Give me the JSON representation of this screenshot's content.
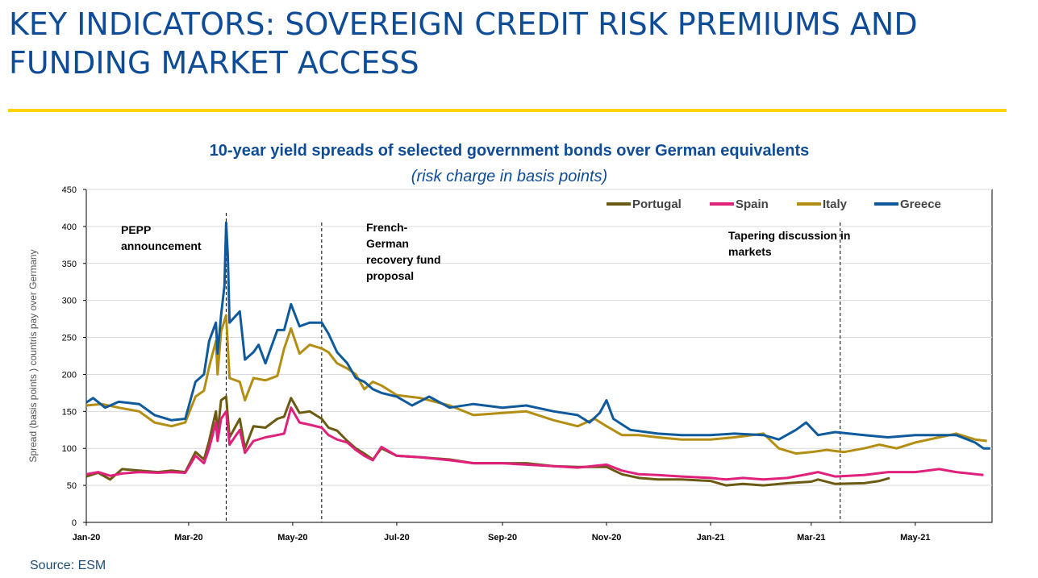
{
  "slide": {
    "title_line1": "KEY INDICATORS: SOVEREIGN CREDIT RISK PREMIUMS AND",
    "title_line2": "FUNDING MARKET ACCESS",
    "accent_color": "#FFD200",
    "title_color": "#0F4C97",
    "source": "Source: ESM"
  },
  "chart_data": {
    "type": "line",
    "title": "10-year yield spreads of selected government bonds over German equivalents",
    "subtitle": "(risk charge in basis points)",
    "ylabel": "Spread (basis points ) countris pay over Germany",
    "xlabel": "",
    "ylim": [
      0,
      450
    ],
    "y_ticks": [
      "0",
      "50",
      "100",
      "150",
      "200",
      "250",
      "300",
      "350",
      "400",
      "450"
    ],
    "x_ticks": [
      {
        "label": "Jan-20",
        "date": "2020-01-01"
      },
      {
        "label": "Mar-20",
        "date": "2020-03-01"
      },
      {
        "label": "May-20",
        "date": "2020-05-01"
      },
      {
        "label": "Jul-20",
        "date": "2020-07-01"
      },
      {
        "label": "Sep-20",
        "date": "2020-09-01"
      },
      {
        "label": "Nov-20",
        "date": "2020-11-01"
      },
      {
        "label": "Jan-21",
        "date": "2021-01-01"
      },
      {
        "label": "Mar-21",
        "date": "2021-03-01"
      },
      {
        "label": "May-21",
        "date": "2021-05-01"
      }
    ],
    "x_range": [
      "2020-01-01",
      "2021-06-15"
    ],
    "grid": true,
    "legend_position": "top-right",
    "series": [
      {
        "name": "Portugal",
        "color": "#6B5A12",
        "points": [
          [
            "2020-01-01",
            62
          ],
          [
            "2020-01-08",
            67
          ],
          [
            "2020-01-15",
            58
          ],
          [
            "2020-01-22",
            72
          ],
          [
            "2020-02-01",
            70
          ],
          [
            "2020-02-12",
            68
          ],
          [
            "2020-02-20",
            70
          ],
          [
            "2020-02-28",
            68
          ],
          [
            "2020-03-05",
            95
          ],
          [
            "2020-03-10",
            85
          ],
          [
            "2020-03-13",
            110
          ],
          [
            "2020-03-17",
            150
          ],
          [
            "2020-03-18",
            120
          ],
          [
            "2020-03-20",
            165
          ],
          [
            "2020-03-23",
            170
          ],
          [
            "2020-03-25",
            115
          ],
          [
            "2020-03-31",
            140
          ],
          [
            "2020-04-03",
            100
          ],
          [
            "2020-04-08",
            130
          ],
          [
            "2020-04-15",
            128
          ],
          [
            "2020-04-22",
            140
          ],
          [
            "2020-04-26",
            143
          ],
          [
            "2020-04-30",
            168
          ],
          [
            "2020-05-05",
            148
          ],
          [
            "2020-05-11",
            150
          ],
          [
            "2020-05-18",
            140
          ],
          [
            "2020-05-22",
            128
          ],
          [
            "2020-05-27",
            124
          ],
          [
            "2020-06-02",
            110
          ],
          [
            "2020-06-07",
            100
          ],
          [
            "2020-06-12",
            93
          ],
          [
            "2020-06-17",
            85
          ],
          [
            "2020-06-22",
            100
          ],
          [
            "2020-07-01",
            90
          ],
          [
            "2020-07-15",
            88
          ],
          [
            "2020-08-01",
            85
          ],
          [
            "2020-08-15",
            80
          ],
          [
            "2020-09-01",
            80
          ],
          [
            "2020-09-15",
            80
          ],
          [
            "2020-10-01",
            76
          ],
          [
            "2020-10-15",
            75
          ],
          [
            "2020-11-01",
            75
          ],
          [
            "2020-11-10",
            65
          ],
          [
            "2020-11-20",
            60
          ],
          [
            "2020-12-01",
            58
          ],
          [
            "2020-12-15",
            58
          ],
          [
            "2021-01-01",
            56
          ],
          [
            "2021-01-10",
            50
          ],
          [
            "2021-01-20",
            52
          ],
          [
            "2021-02-01",
            50
          ],
          [
            "2021-02-15",
            53
          ],
          [
            "2021-03-01",
            55
          ],
          [
            "2021-03-05",
            58
          ],
          [
            "2021-03-15",
            52
          ],
          [
            "2021-04-01",
            53
          ],
          [
            "2021-04-10",
            56
          ],
          [
            "2021-04-16",
            60
          ]
        ]
      },
      {
        "name": "Spain",
        "color": "#E0217C",
        "points": [
          [
            "2020-01-01",
            65
          ],
          [
            "2020-01-08",
            68
          ],
          [
            "2020-01-15",
            63
          ],
          [
            "2020-01-22",
            66
          ],
          [
            "2020-02-01",
            68
          ],
          [
            "2020-02-12",
            67
          ],
          [
            "2020-02-20",
            68
          ],
          [
            "2020-02-28",
            67
          ],
          [
            "2020-03-05",
            90
          ],
          [
            "2020-03-10",
            80
          ],
          [
            "2020-03-13",
            100
          ],
          [
            "2020-03-17",
            135
          ],
          [
            "2020-03-18",
            110
          ],
          [
            "2020-03-20",
            140
          ],
          [
            "2020-03-23",
            150
          ],
          [
            "2020-03-25",
            105
          ],
          [
            "2020-03-31",
            125
          ],
          [
            "2020-04-03",
            94
          ],
          [
            "2020-04-08",
            110
          ],
          [
            "2020-04-15",
            115
          ],
          [
            "2020-04-22",
            118
          ],
          [
            "2020-04-26",
            120
          ],
          [
            "2020-04-30",
            155
          ],
          [
            "2020-05-05",
            135
          ],
          [
            "2020-05-11",
            132
          ],
          [
            "2020-05-18",
            128
          ],
          [
            "2020-05-22",
            118
          ],
          [
            "2020-05-27",
            112
          ],
          [
            "2020-06-02",
            108
          ],
          [
            "2020-06-07",
            98
          ],
          [
            "2020-06-12",
            90
          ],
          [
            "2020-06-17",
            84
          ],
          [
            "2020-06-22",
            102
          ],
          [
            "2020-07-01",
            90
          ],
          [
            "2020-07-15",
            88
          ],
          [
            "2020-08-01",
            84
          ],
          [
            "2020-08-15",
            80
          ],
          [
            "2020-09-01",
            80
          ],
          [
            "2020-09-15",
            78
          ],
          [
            "2020-10-01",
            76
          ],
          [
            "2020-10-15",
            74
          ],
          [
            "2020-11-01",
            78
          ],
          [
            "2020-11-10",
            70
          ],
          [
            "2020-11-20",
            65
          ],
          [
            "2020-12-01",
            64
          ],
          [
            "2020-12-15",
            62
          ],
          [
            "2021-01-01",
            60
          ],
          [
            "2021-01-10",
            58
          ],
          [
            "2021-01-20",
            60
          ],
          [
            "2021-02-01",
            58
          ],
          [
            "2021-02-15",
            60
          ],
          [
            "2021-03-01",
            66
          ],
          [
            "2021-03-05",
            68
          ],
          [
            "2021-03-15",
            62
          ],
          [
            "2021-04-01",
            64
          ],
          [
            "2021-04-15",
            68
          ],
          [
            "2021-05-01",
            68
          ],
          [
            "2021-05-15",
            72
          ],
          [
            "2021-05-25",
            68
          ],
          [
            "2021-06-10",
            64
          ]
        ]
      },
      {
        "name": "Italy",
        "color": "#B38E12",
        "points": [
          [
            "2020-01-01",
            158
          ],
          [
            "2020-01-10",
            160
          ],
          [
            "2020-01-20",
            155
          ],
          [
            "2020-02-01",
            150
          ],
          [
            "2020-02-10",
            135
          ],
          [
            "2020-02-20",
            130
          ],
          [
            "2020-02-28",
            135
          ],
          [
            "2020-03-05",
            170
          ],
          [
            "2020-03-10",
            178
          ],
          [
            "2020-03-13",
            210
          ],
          [
            "2020-03-17",
            245
          ],
          [
            "2020-03-18",
            200
          ],
          [
            "2020-03-20",
            258
          ],
          [
            "2020-03-23",
            280
          ],
          [
            "2020-03-25",
            195
          ],
          [
            "2020-03-31",
            190
          ],
          [
            "2020-04-03",
            165
          ],
          [
            "2020-04-08",
            195
          ],
          [
            "2020-04-15",
            192
          ],
          [
            "2020-04-22",
            198
          ],
          [
            "2020-04-26",
            235
          ],
          [
            "2020-04-30",
            262
          ],
          [
            "2020-05-05",
            228
          ],
          [
            "2020-05-11",
            240
          ],
          [
            "2020-05-18",
            235
          ],
          [
            "2020-05-22",
            230
          ],
          [
            "2020-05-27",
            215
          ],
          [
            "2020-06-02",
            208
          ],
          [
            "2020-06-07",
            200
          ],
          [
            "2020-06-12",
            180
          ],
          [
            "2020-06-17",
            190
          ],
          [
            "2020-06-22",
            185
          ],
          [
            "2020-07-01",
            172
          ],
          [
            "2020-07-15",
            168
          ],
          [
            "2020-08-01",
            158
          ],
          [
            "2020-08-15",
            145
          ],
          [
            "2020-09-01",
            148
          ],
          [
            "2020-09-15",
            150
          ],
          [
            "2020-10-01",
            138
          ],
          [
            "2020-10-15",
            130
          ],
          [
            "2020-10-25",
            140
          ],
          [
            "2020-11-01",
            130
          ],
          [
            "2020-11-10",
            118
          ],
          [
            "2020-11-20",
            118
          ],
          [
            "2020-12-01",
            115
          ],
          [
            "2020-12-15",
            112
          ],
          [
            "2021-01-01",
            112
          ],
          [
            "2021-01-15",
            115
          ],
          [
            "2021-02-01",
            120
          ],
          [
            "2021-02-10",
            100
          ],
          [
            "2021-02-20",
            93
          ],
          [
            "2021-03-01",
            95
          ],
          [
            "2021-03-10",
            98
          ],
          [
            "2021-03-20",
            95
          ],
          [
            "2021-04-01",
            100
          ],
          [
            "2021-04-10",
            105
          ],
          [
            "2021-04-20",
            100
          ],
          [
            "2021-05-01",
            108
          ],
          [
            "2021-05-15",
            115
          ],
          [
            "2021-05-25",
            120
          ],
          [
            "2021-06-05",
            112
          ],
          [
            "2021-06-12",
            110
          ]
        ]
      },
      {
        "name": "Greece",
        "color": "#0F5A9C",
        "points": [
          [
            "2020-01-01",
            162
          ],
          [
            "2020-01-05",
            168
          ],
          [
            "2020-01-12",
            155
          ],
          [
            "2020-01-20",
            163
          ],
          [
            "2020-02-01",
            160
          ],
          [
            "2020-02-10",
            145
          ],
          [
            "2020-02-20",
            138
          ],
          [
            "2020-02-28",
            140
          ],
          [
            "2020-03-05",
            190
          ],
          [
            "2020-03-10",
            200
          ],
          [
            "2020-03-13",
            245
          ],
          [
            "2020-03-17",
            270
          ],
          [
            "2020-03-18",
            228
          ],
          [
            "2020-03-20",
            280
          ],
          [
            "2020-03-22",
            320
          ],
          [
            "2020-03-23",
            405
          ],
          [
            "2020-03-24",
            360
          ],
          [
            "2020-03-25",
            270
          ],
          [
            "2020-03-31",
            285
          ],
          [
            "2020-04-03",
            220
          ],
          [
            "2020-04-08",
            230
          ],
          [
            "2020-04-11",
            240
          ],
          [
            "2020-04-15",
            215
          ],
          [
            "2020-04-22",
            260
          ],
          [
            "2020-04-26",
            260
          ],
          [
            "2020-04-30",
            295
          ],
          [
            "2020-05-05",
            265
          ],
          [
            "2020-05-11",
            270
          ],
          [
            "2020-05-18",
            270
          ],
          [
            "2020-05-22",
            255
          ],
          [
            "2020-05-27",
            230
          ],
          [
            "2020-06-02",
            215
          ],
          [
            "2020-06-07",
            195
          ],
          [
            "2020-06-12",
            190
          ],
          [
            "2020-06-17",
            180
          ],
          [
            "2020-06-22",
            175
          ],
          [
            "2020-07-01",
            170
          ],
          [
            "2020-07-10",
            158
          ],
          [
            "2020-07-20",
            170
          ],
          [
            "2020-08-01",
            155
          ],
          [
            "2020-08-15",
            160
          ],
          [
            "2020-09-01",
            155
          ],
          [
            "2020-09-15",
            158
          ],
          [
            "2020-10-01",
            150
          ],
          [
            "2020-10-15",
            145
          ],
          [
            "2020-10-22",
            135
          ],
          [
            "2020-10-28",
            148
          ],
          [
            "2020-11-01",
            165
          ],
          [
            "2020-11-05",
            140
          ],
          [
            "2020-11-15",
            125
          ],
          [
            "2020-12-01",
            120
          ],
          [
            "2020-12-15",
            118
          ],
          [
            "2021-01-01",
            118
          ],
          [
            "2021-01-15",
            120
          ],
          [
            "2021-02-01",
            118
          ],
          [
            "2021-02-10",
            112
          ],
          [
            "2021-02-20",
            125
          ],
          [
            "2021-02-26",
            135
          ],
          [
            "2021-03-05",
            118
          ],
          [
            "2021-03-15",
            122
          ],
          [
            "2021-04-01",
            118
          ],
          [
            "2021-04-15",
            115
          ],
          [
            "2021-05-01",
            118
          ],
          [
            "2021-05-15",
            118
          ],
          [
            "2021-05-25",
            118
          ],
          [
            "2021-06-05",
            108
          ],
          [
            "2021-06-10",
            100
          ],
          [
            "2021-06-14",
            100
          ]
        ]
      }
    ],
    "annotations": [
      {
        "lines": [
          "PEPP",
          "announcement"
        ],
        "date": "2020-03-23"
      },
      {
        "lines": [
          "French-",
          "German",
          "recovery fund",
          "proposal"
        ],
        "date": "2020-05-18"
      },
      {
        "lines": [
          "Tapering discussion in",
          "markets"
        ],
        "date": "2021-03-18"
      }
    ]
  }
}
